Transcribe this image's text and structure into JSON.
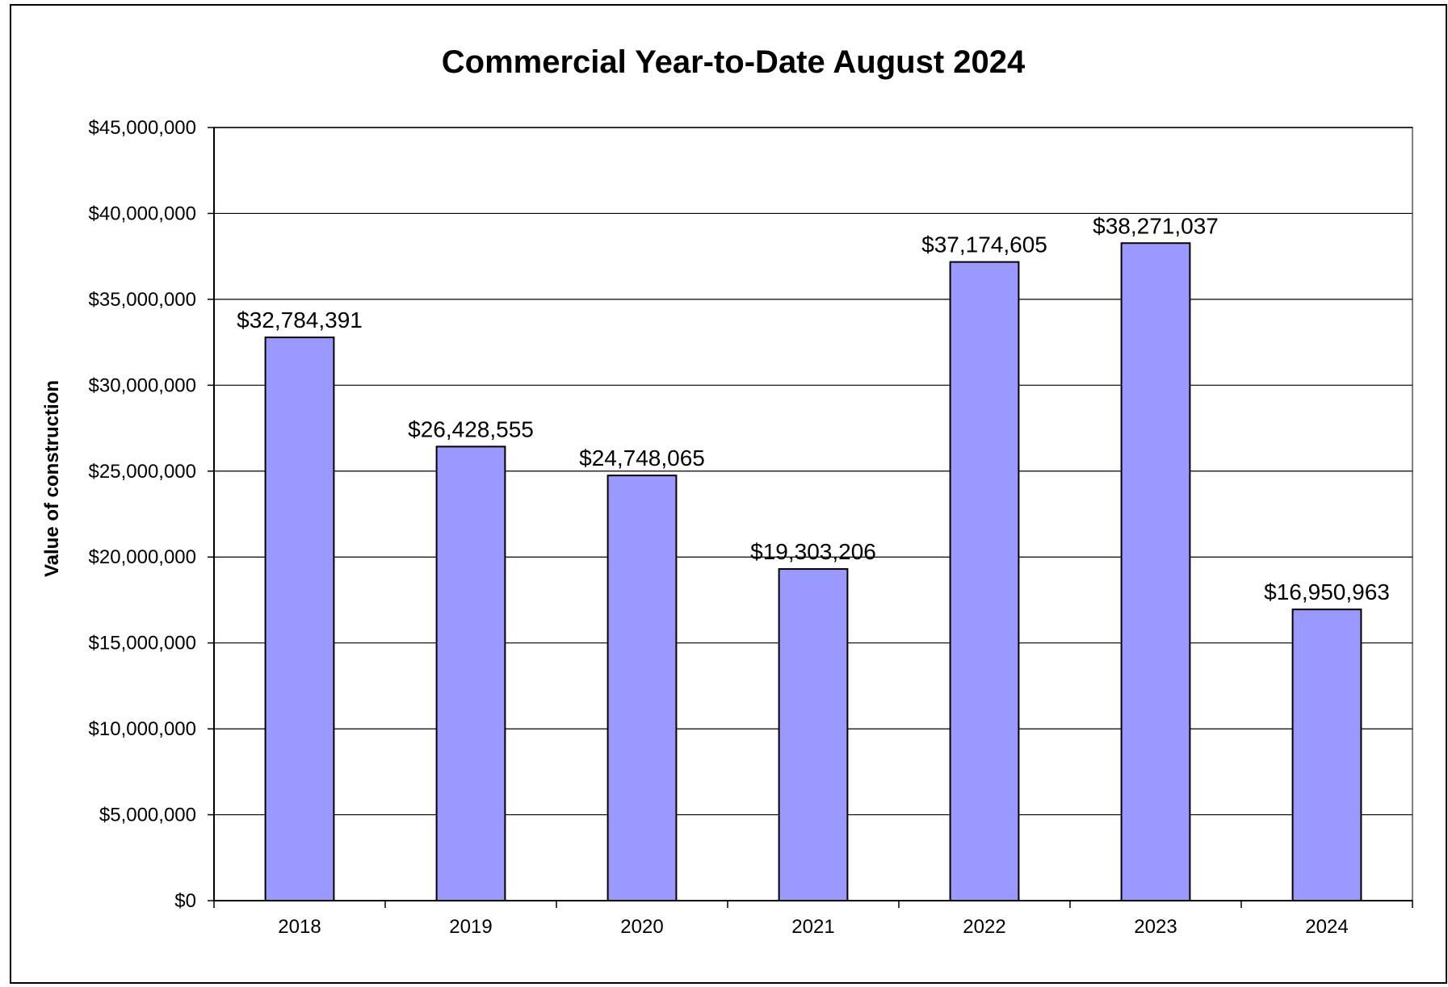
{
  "chart_data": {
    "type": "bar",
    "title": "Commercial Year-to-Date August 2024",
    "xlabel": "",
    "ylabel": "Value of construction",
    "categories": [
      "2018",
      "2019",
      "2020",
      "2021",
      "2022",
      "2023",
      "2024"
    ],
    "values": [
      32784391,
      26428555,
      24748065,
      19303206,
      37174605,
      38271037,
      16950963
    ],
    "value_labels": [
      "$32,784,391",
      "$26,428,555",
      "$24,748,065",
      "$19,303,206",
      "$37,174,605",
      "$38,271,037",
      "$16,950,963"
    ],
    "ylim": [
      0,
      45000000
    ],
    "yticks": [
      0,
      5000000,
      10000000,
      15000000,
      20000000,
      25000000,
      30000000,
      35000000,
      40000000,
      45000000
    ],
    "ytick_labels": [
      "$0",
      "$5,000,000",
      "$10,000,000",
      "$15,000,000",
      "$20,000,000",
      "$25,000,000",
      "$30,000,000",
      "$35,000,000",
      "$40,000,000",
      "$45,000,000"
    ],
    "grid": true,
    "legend": "none",
    "bar_color": "#9999FF",
    "bar_edge_color": "#000000"
  }
}
